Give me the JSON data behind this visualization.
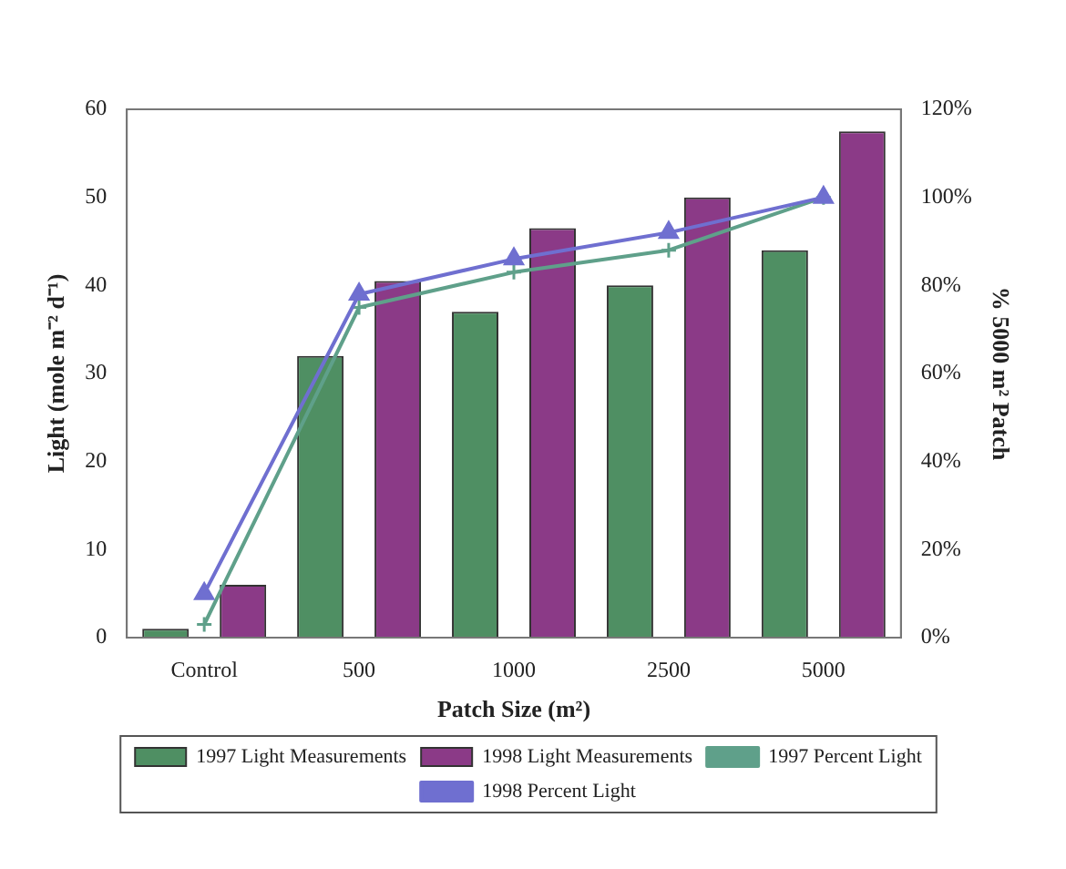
{
  "chart_data": {
    "type": "bar",
    "xlabel": "Patch Size (m²)",
    "ylabel": "Light (mole m⁻² d⁻¹)",
    "y2label": "% 5000 m² Patch",
    "categories": [
      "Control",
      "500",
      "1000",
      "2500",
      "5000"
    ],
    "series": [
      {
        "name": "1997 Light Measurements",
        "color": "#4f8f63",
        "values": [
          1,
          32,
          37,
          40,
          44
        ]
      },
      {
        "name": "1998 Light Measurements",
        "color": "#8b3a87",
        "values": [
          6,
          40.5,
          46.5,
          50,
          57.5
        ]
      },
      {
        "name": "1997 Percent Light",
        "type": "line",
        "axis": "y2",
        "marker": "cross",
        "color": "#5fa08a",
        "values": [
          3,
          75,
          83,
          88,
          100
        ]
      },
      {
        "name": "1998 Percent Light",
        "type": "line",
        "axis": "y2",
        "marker": "triangle",
        "color": "#6f6fd0",
        "values": [
          10,
          78,
          86,
          92,
          100
        ]
      }
    ],
    "ylim": [
      0,
      60
    ],
    "yticks": [
      0,
      10,
      20,
      30,
      40,
      50,
      60
    ],
    "y2lim": [
      0,
      120
    ],
    "y2ticks": [
      {
        "value": 0,
        "label": "0%"
      },
      {
        "value": 20,
        "label": "20%"
      },
      {
        "value": 40,
        "label": "40%"
      },
      {
        "value": 60,
        "label": "60%"
      },
      {
        "value": 80,
        "label": "80%"
      },
      {
        "value": 100,
        "label": "100%"
      },
      {
        "value": 120,
        "label": "120%"
      }
    ],
    "grid": false,
    "legend": "bottom"
  }
}
